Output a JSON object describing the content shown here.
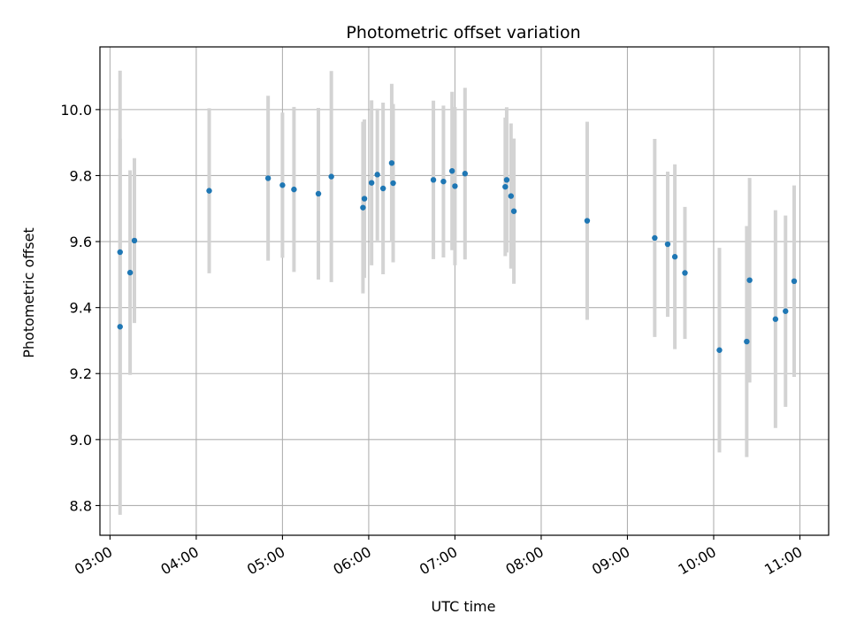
{
  "chart_data": {
    "type": "scatter",
    "title": "Photometric offset variation",
    "xlabel": "UTC time",
    "ylabel": "Photometric offset",
    "x_ticks": [
      "03:00",
      "04:00",
      "05:00",
      "06:00",
      "07:00",
      "08:00",
      "09:00",
      "10:00",
      "11:00"
    ],
    "y_ticks": [
      "8.8",
      "9.0",
      "9.2",
      "9.4",
      "9.6",
      "9.8",
      "10.0"
    ],
    "xlim": [
      "02:53",
      "11:20"
    ],
    "ylim": [
      8.71,
      10.19
    ],
    "grid": true,
    "colors": {
      "points": "#1f77b4",
      "errorbars": "#d3d3d3",
      "grid": "#b0b0b0"
    },
    "points": [
      {
        "x": "03:07",
        "y": 9.568,
        "err": 0.55
      },
      {
        "x": "03:07",
        "y": 9.342,
        "err": 0.57
      },
      {
        "x": "03:14",
        "y": 9.506,
        "err": 0.31
      },
      {
        "x": "03:17",
        "y": 9.603,
        "err": 0.25
      },
      {
        "x": "04:09",
        "y": 9.754,
        "err": 0.25
      },
      {
        "x": "04:50",
        "y": 9.792,
        "err": 0.25
      },
      {
        "x": "05:00",
        "y": 9.771,
        "err": 0.22
      },
      {
        "x": "05:08",
        "y": 9.758,
        "err": 0.25
      },
      {
        "x": "05:25",
        "y": 9.745,
        "err": 0.26
      },
      {
        "x": "05:34",
        "y": 9.797,
        "err": 0.32
      },
      {
        "x": "05:56",
        "y": 9.703,
        "err": 0.26
      },
      {
        "x": "05:57",
        "y": 9.73,
        "err": 0.24
      },
      {
        "x": "06:02",
        "y": 9.778,
        "err": 0.25
      },
      {
        "x": "06:06",
        "y": 9.803,
        "err": 0.2
      },
      {
        "x": "06:10",
        "y": 9.761,
        "err": 0.26
      },
      {
        "x": "06:16",
        "y": 9.838,
        "err": 0.24
      },
      {
        "x": "06:17",
        "y": 9.777,
        "err": 0.24
      },
      {
        "x": "06:45",
        "y": 9.787,
        "err": 0.24
      },
      {
        "x": "06:52",
        "y": 9.782,
        "err": 0.23
      },
      {
        "x": "06:58",
        "y": 9.814,
        "err": 0.24
      },
      {
        "x": "07:00",
        "y": 9.768,
        "err": 0.24
      },
      {
        "x": "07:07",
        "y": 9.806,
        "err": 0.26
      },
      {
        "x": "07:35",
        "y": 9.766,
        "err": 0.21
      },
      {
        "x": "07:36",
        "y": 9.787,
        "err": 0.22
      },
      {
        "x": "07:39",
        "y": 9.738,
        "err": 0.22
      },
      {
        "x": "07:41",
        "y": 9.692,
        "err": 0.22
      },
      {
        "x": "08:32",
        "y": 9.663,
        "err": 0.3
      },
      {
        "x": "09:19",
        "y": 9.611,
        "err": 0.3
      },
      {
        "x": "09:28",
        "y": 9.592,
        "err": 0.22
      },
      {
        "x": "09:33",
        "y": 9.554,
        "err": 0.28
      },
      {
        "x": "09:40",
        "y": 9.505,
        "err": 0.2
      },
      {
        "x": "10:04",
        "y": 9.271,
        "err": 0.31
      },
      {
        "x": "10:23",
        "y": 9.297,
        "err": 0.35
      },
      {
        "x": "10:25",
        "y": 9.483,
        "err": 0.31
      },
      {
        "x": "10:43",
        "y": 9.365,
        "err": 0.33
      },
      {
        "x": "10:50",
        "y": 9.389,
        "err": 0.29
      },
      {
        "x": "10:56",
        "y": 9.48,
        "err": 0.29
      }
    ]
  }
}
